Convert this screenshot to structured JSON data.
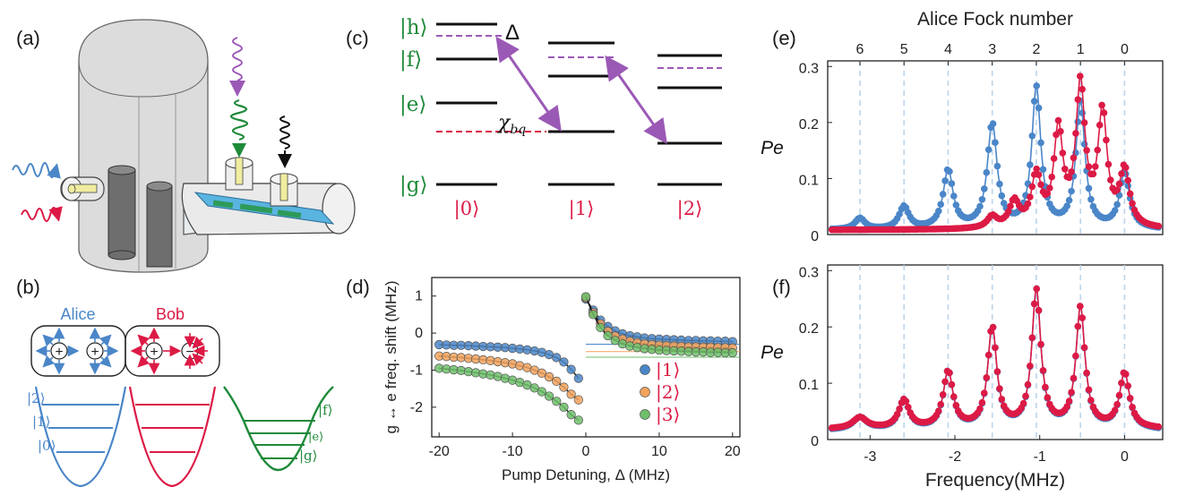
{
  "panels": {
    "a": "(a)",
    "b": "(b)",
    "c": "(c)",
    "d": "(d)",
    "e": "(e)",
    "f": "(f)"
  },
  "colors": {
    "alice": "#4a86c8",
    "bob": "#dc1a45",
    "transmon": "#1f8a3a",
    "pump": "#9b59b6",
    "orange": "#f2a25c",
    "green_pt": "#6dbf6a",
    "grid_dash": "#bcd4ea"
  },
  "panel_b": {
    "alice_label": "Alice",
    "bob_label": "Bob",
    "alice_kets": [
      "|2⟩",
      "|1⟩",
      "|0⟩"
    ],
    "transmon_kets": [
      "|f⟩",
      "|e⟩",
      "|g⟩"
    ],
    "plus_sign": "+",
    "minus_sign": "−"
  },
  "panel_c": {
    "level_kets": [
      "|h⟩",
      "|f⟩",
      "|e⟩",
      "|g⟩"
    ],
    "delta_label": "Δ",
    "chi_label": "χ",
    "chi_sub": "bq",
    "bottom_kets": [
      "|0⟩",
      "|1⟩",
      "|2⟩"
    ]
  },
  "chart_data": [
    {
      "panel": "d",
      "type": "scatter",
      "xlabel": "Pump Detuning, Δ (MHz)",
      "ylabel": "g ↔ e freq. shift (MHz)",
      "xlim": [
        -21,
        21
      ],
      "ylim": [
        -2.8,
        1.5
      ],
      "xticks": [
        -20,
        -10,
        0,
        10,
        20
      ],
      "yticks": [
        1,
        0,
        -1,
        -2
      ],
      "xtick_labels": [
        "-20",
        "-10",
        "0",
        "10",
        "20"
      ],
      "ytick_labels": [
        "1",
        "0",
        "-1",
        "-2"
      ],
      "legend": [
        "|1⟩",
        "|2⟩",
        "|3⟩"
      ],
      "legend_position": "bottom-right",
      "series": [
        {
          "name": "|1⟩",
          "asymptote": -0.3,
          "left": {
            "x": [
              -20,
              -19,
              -18,
              -17,
              -16,
              -15,
              -14,
              -13,
              -12,
              -11,
              -10,
              -9,
              -8,
              -7,
              -6,
              -5,
              -4,
              -3,
              -2,
              -1
            ],
            "y": [
              -0.31,
              -0.32,
              -0.33,
              -0.33,
              -0.34,
              -0.35,
              -0.36,
              -0.37,
              -0.38,
              -0.39,
              -0.41,
              -0.43,
              -0.45,
              -0.48,
              -0.52,
              -0.58,
              -0.66,
              -0.78,
              -0.98,
              -1.22
            ]
          },
          "right": {
            "x": [
              0,
              1,
              2,
              3,
              4,
              5,
              6,
              7,
              8,
              9,
              10,
              11,
              12,
              13,
              14,
              15,
              16,
              17,
              18,
              19,
              20
            ],
            "y": [
              0.92,
              0.62,
              0.35,
              0.18,
              0.06,
              -0.02,
              -0.07,
              -0.1,
              -0.13,
              -0.15,
              -0.16,
              -0.17,
              -0.18,
              -0.19,
              -0.2,
              -0.2,
              -0.21,
              -0.21,
              -0.22,
              -0.22,
              -0.23
            ]
          }
        },
        {
          "name": "|2⟩",
          "asymptote": -0.5,
          "left": {
            "x": [
              -20,
              -19,
              -18,
              -17,
              -16,
              -15,
              -14,
              -13,
              -12,
              -11,
              -10,
              -9,
              -8,
              -7,
              -6,
              -5,
              -4,
              -3,
              -2,
              -1
            ],
            "y": [
              -0.62,
              -0.63,
              -0.65,
              -0.66,
              -0.68,
              -0.7,
              -0.72,
              -0.74,
              -0.77,
              -0.8,
              -0.83,
              -0.88,
              -0.93,
              -1.0,
              -1.08,
              -1.18,
              -1.3,
              -1.46,
              -1.65,
              -1.8
            ]
          },
          "right": {
            "x": [
              0,
              1,
              2,
              3,
              4,
              5,
              6,
              7,
              8,
              9,
              10,
              11,
              12,
              13,
              14,
              15,
              16,
              17,
              18,
              19,
              20
            ],
            "y": [
              0.95,
              0.55,
              0.25,
              0.05,
              -0.08,
              -0.16,
              -0.22,
              -0.26,
              -0.29,
              -0.31,
              -0.33,
              -0.34,
              -0.35,
              -0.36,
              -0.37,
              -0.37,
              -0.38,
              -0.38,
              -0.39,
              -0.39,
              -0.4
            ]
          }
        },
        {
          "name": "|3⟩",
          "asymptote": -0.65,
          "left": {
            "x": [
              -20,
              -19,
              -18,
              -17,
              -16,
              -15,
              -14,
              -13,
              -12,
              -11,
              -10,
              -9,
              -8,
              -7,
              -6,
              -5,
              -4,
              -3,
              -2,
              -1
            ],
            "y": [
              -0.95,
              -0.97,
              -0.99,
              -1.01,
              -1.04,
              -1.07,
              -1.1,
              -1.13,
              -1.17,
              -1.22,
              -1.27,
              -1.33,
              -1.4,
              -1.48,
              -1.58,
              -1.7,
              -1.84,
              -2.0,
              -2.2,
              -2.35
            ]
          },
          "right": {
            "x": [
              0,
              1,
              2,
              3,
              4,
              5,
              6,
              7,
              8,
              9,
              10,
              11,
              12,
              13,
              14,
              15,
              16,
              17,
              18,
              19,
              20
            ],
            "y": [
              0.98,
              0.5,
              0.15,
              -0.07,
              -0.2,
              -0.29,
              -0.35,
              -0.39,
              -0.42,
              -0.44,
              -0.46,
              -0.47,
              -0.48,
              -0.49,
              -0.5,
              -0.51,
              -0.51,
              -0.52,
              -0.52,
              -0.53,
              -0.53
            ]
          }
        }
      ]
    },
    {
      "panel": "e",
      "type": "line",
      "top_axis_label": "Alice Fock number",
      "top_ticks": {
        "x": [
          -3.12,
          -2.6,
          -2.08,
          -1.56,
          -1.04,
          -0.52,
          0
        ],
        "labels": [
          "6",
          "5",
          "4",
          "3",
          "2",
          "1",
          "0"
        ]
      },
      "ylabel": "Pe",
      "xlim": [
        -3.5,
        0.45
      ],
      "ylim": [
        0,
        0.31
      ],
      "yticks": [
        0,
        0.1,
        0.2,
        0.3
      ],
      "ytick_labels": [
        "0",
        "0.1",
        "0.2",
        "0.3"
      ],
      "series": [
        {
          "name": "",
          "color": "alice",
          "peaks": [
            {
              "x": -3.12,
              "h": 0.02,
              "w": 0.07
            },
            {
              "x": -2.6,
              "h": 0.04,
              "w": 0.07
            },
            {
              "x": -2.08,
              "h": 0.104,
              "w": 0.07
            },
            {
              "x": -1.56,
              "h": 0.186,
              "w": 0.07
            },
            {
              "x": -1.04,
              "h": 0.25,
              "w": 0.065
            },
            {
              "x": -0.52,
              "h": 0.225,
              "w": 0.065
            },
            {
              "x": 0.0,
              "h": 0.1,
              "w": 0.07
            }
          ],
          "baseline": 0.008
        },
        {
          "name": "",
          "color": "bob",
          "peaks": [
            {
              "x": -1.56,
              "h": 0.02,
              "w": 0.07
            },
            {
              "x": -1.3,
              "h": 0.045,
              "w": 0.07
            },
            {
              "x": -1.04,
              "h": 0.09,
              "w": 0.07
            },
            {
              "x": -0.78,
              "h": 0.17,
              "w": 0.065
            },
            {
              "x": -0.52,
              "h": 0.25,
              "w": 0.065
            },
            {
              "x": -0.26,
              "h": 0.2,
              "w": 0.065
            },
            {
              "x": 0.0,
              "h": 0.1,
              "w": 0.07
            }
          ],
          "baseline": 0.008
        }
      ]
    },
    {
      "panel": "f",
      "type": "line",
      "xlabel": "Frequency(MHz)",
      "ylabel": "Pe",
      "xlim": [
        -3.5,
        0.45
      ],
      "ylim": [
        0,
        0.31
      ],
      "xticks": [
        -3,
        -2,
        -1,
        0
      ],
      "xtick_labels": [
        "-3",
        "-2",
        "-1",
        "0"
      ],
      "yticks": [
        0,
        0.1,
        0.2,
        0.3
      ],
      "ytick_labels": [
        "0",
        "0.1",
        "0.2",
        "0.3"
      ],
      "guide_x": [
        -3.12,
        -2.6,
        -2.08,
        -1.56,
        -1.04,
        -0.52,
        0
      ],
      "series": [
        {
          "name": "",
          "color": "alice",
          "peaks": [
            {
              "x": -3.12,
              "h": 0.022,
              "w": 0.1
            },
            {
              "x": -2.6,
              "h": 0.052,
              "w": 0.075
            },
            {
              "x": -2.08,
              "h": 0.102,
              "w": 0.07
            },
            {
              "x": -1.56,
              "h": 0.18,
              "w": 0.065
            },
            {
              "x": -1.04,
              "h": 0.245,
              "w": 0.065
            },
            {
              "x": -0.52,
              "h": 0.215,
              "w": 0.065
            },
            {
              "x": 0.0,
              "h": 0.1,
              "w": 0.07
            }
          ],
          "baseline": 0.016
        },
        {
          "name": "",
          "color": "bob",
          "peaks": [
            {
              "x": -3.12,
              "h": 0.02,
              "w": 0.1
            },
            {
              "x": -2.6,
              "h": 0.05,
              "w": 0.075
            },
            {
              "x": -2.08,
              "h": 0.1,
              "w": 0.07
            },
            {
              "x": -1.56,
              "h": 0.178,
              "w": 0.065
            },
            {
              "x": -1.04,
              "h": 0.243,
              "w": 0.065
            },
            {
              "x": -0.52,
              "h": 0.213,
              "w": 0.065
            },
            {
              "x": 0.0,
              "h": 0.098,
              "w": 0.07
            }
          ],
          "baseline": 0.018
        }
      ]
    }
  ]
}
